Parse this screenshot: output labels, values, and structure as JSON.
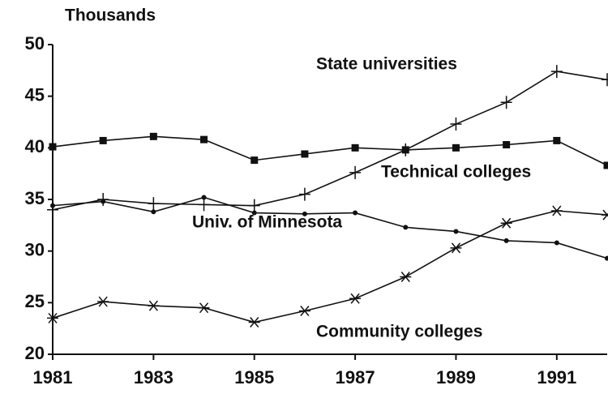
{
  "chart_data": {
    "type": "line",
    "y_axis_label": "Thousands",
    "x": [
      1981,
      1982,
      1983,
      1984,
      1985,
      1986,
      1987,
      1988,
      1989,
      1990,
      1991,
      1992
    ],
    "xlim": [
      1981,
      1992
    ],
    "xticks": [
      1981,
      1983,
      1985,
      1987,
      1989,
      1991
    ],
    "ylim": [
      20,
      50
    ],
    "yticks": [
      20,
      25,
      30,
      35,
      40,
      45,
      50
    ],
    "series": [
      {
        "name": "State universities",
        "color": "#111111",
        "marker": "plus",
        "values": [
          34.0,
          35.0,
          34.6,
          34.5,
          34.4,
          35.5,
          37.6,
          39.8,
          42.3,
          44.4,
          47.4,
          46.6
        ]
      },
      {
        "name": "Technical colleges",
        "color": "#111111",
        "marker": "square",
        "values": [
          40.1,
          40.7,
          41.1,
          40.8,
          38.8,
          39.4,
          40.0,
          39.8,
          40.0,
          40.3,
          40.7,
          38.3
        ]
      },
      {
        "name": "Univ. of Minnesota",
        "color": "#111111",
        "marker": "dot",
        "values": [
          34.4,
          34.8,
          33.8,
          35.2,
          33.7,
          33.6,
          33.7,
          32.3,
          31.9,
          31.0,
          30.8,
          29.3
        ]
      },
      {
        "name": "Community colleges",
        "color": "#111111",
        "marker": "star",
        "values": [
          23.5,
          25.1,
          24.7,
          24.5,
          23.1,
          24.2,
          25.4,
          27.5,
          30.3,
          32.7,
          33.9,
          33.5
        ]
      }
    ]
  }
}
